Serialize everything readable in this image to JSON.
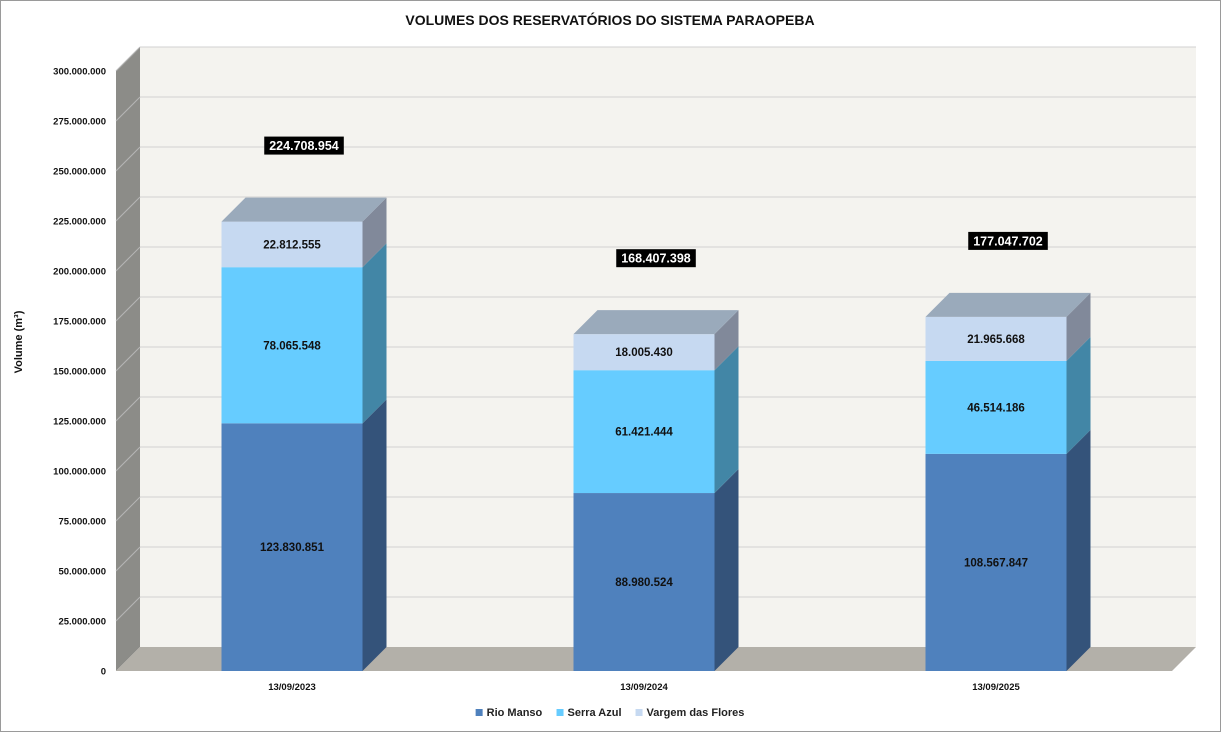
{
  "chart_data": {
    "type": "bar",
    "stacked": true,
    "three_d": true,
    "title": "VOLUMES DOS RESERVATÓRIOS DO SISTEMA PARAOPEBA",
    "xlabel": "",
    "ylabel": "Volume (m³)",
    "ylim": [
      0,
      300000000
    ],
    "ytick_step": 25000000,
    "yticks": [
      "0",
      "25.000.000",
      "50.000.000",
      "75.000.000",
      "100.000.000",
      "125.000.000",
      "150.000.000",
      "175.000.000",
      "200.000.000",
      "225.000.000",
      "250.000.000",
      "275.000.000",
      "300.000.000"
    ],
    "grid": true,
    "legend_position": "bottom",
    "categories": [
      "13/09/2023",
      "13/09/2024",
      "13/09/2025"
    ],
    "series": [
      {
        "name": "Rio Manso",
        "color": "#4f81bd",
        "side_color": "#34537a",
        "values": [
          123830851,
          88980524,
          108567847
        ],
        "labels": [
          "123.830.851",
          "88.980.524",
          "108.567.847"
        ]
      },
      {
        "name": "Serra Azul",
        "color": "#66ccff",
        "side_color": "#4286a6",
        "values": [
          78065548,
          61421444,
          46514186
        ],
        "labels": [
          "78.065.548",
          "61.421.444",
          "46.514.186"
        ]
      },
      {
        "name": "Vargem das Flores",
        "color": "#c6d9f1",
        "side_color": "#81899a",
        "top_color": "#9aaabb",
        "values": [
          22812555,
          18005430,
          21965668
        ],
        "labels": [
          "22.812.555",
          "18.005.430",
          "21.965.668"
        ]
      }
    ],
    "totals": [
      224708954,
      168407398,
      177047702
    ],
    "total_labels": [
      "224.708.954",
      "168.407.398",
      "177.047.702"
    ],
    "colors": {
      "wall": "#f4f3ef",
      "wall_side": "#8c8c88",
      "floor": "#b3b0a9",
      "gridline": "#d2d2d2",
      "total_label_bg": "#000000"
    }
  }
}
